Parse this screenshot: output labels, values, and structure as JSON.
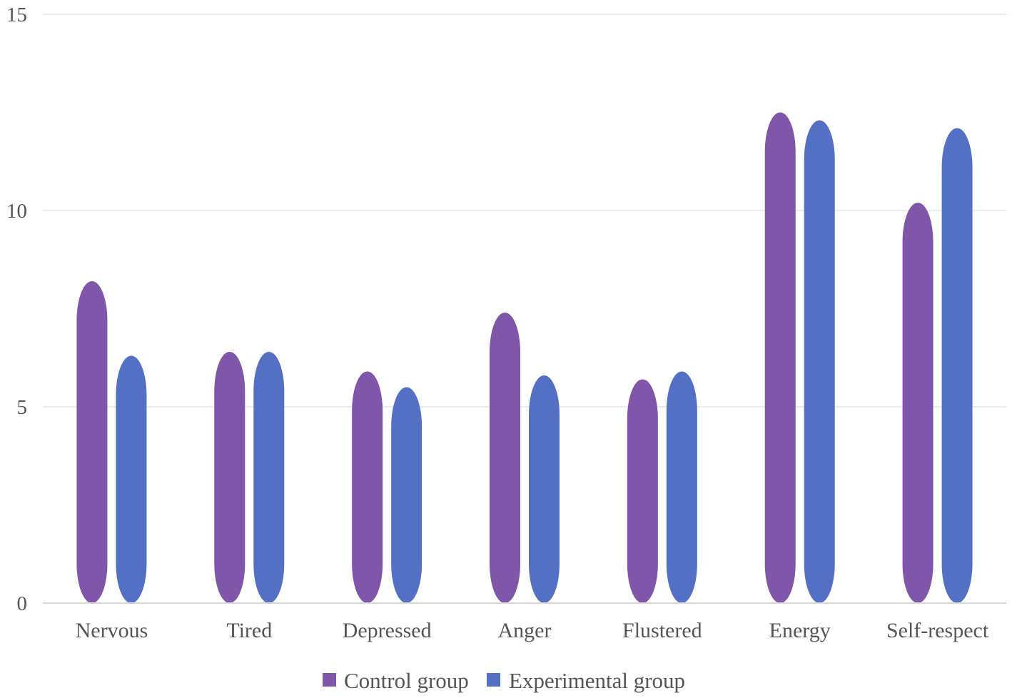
{
  "chart_data": {
    "type": "bar",
    "categories": [
      "Nervous",
      "Tired",
      "Depressed",
      "Anger",
      "Flustered",
      "Energy",
      "Self-respect"
    ],
    "series": [
      {
        "name": "Control group",
        "color": "#7f56a9",
        "values": [
          8.2,
          6.4,
          5.9,
          7.4,
          5.7,
          12.5,
          10.2
        ]
      },
      {
        "name": "Experimental group",
        "color": "#5370c4",
        "values": [
          6.3,
          6.4,
          5.5,
          5.8,
          5.9,
          12.3,
          12.1
        ]
      }
    ],
    "y_ticks": [
      "0",
      "5",
      "10",
      "15"
    ],
    "ylim": [
      0,
      15
    ],
    "grid": true,
    "legend": "bottom-center"
  }
}
